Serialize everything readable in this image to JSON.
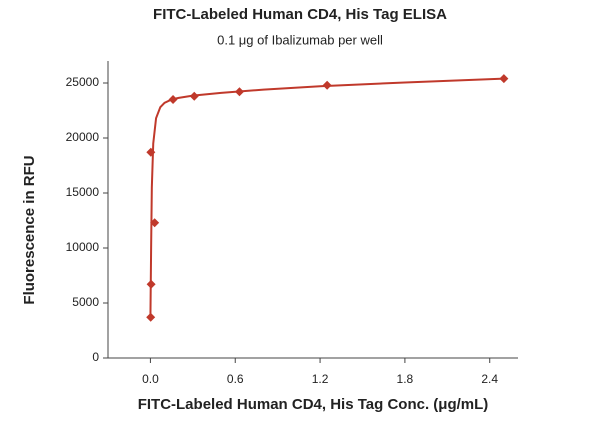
{
  "chart_data": {
    "type": "scatter",
    "title": "FITC-Labeled Human CD4, His Tag ELISA",
    "subtitle": "0.1 μg of Ibalizumab per well",
    "x_label": "FITC-Labeled Human CD4, His Tag Conc. (μg/mL)",
    "y_label": "Fluorescence in RFU",
    "color": "#c0392b",
    "x": [
      0.002,
      0.005,
      0.003,
      0.03,
      0.16,
      0.31,
      0.63,
      1.25,
      2.5
    ],
    "values": [
      3700,
      6700,
      18700,
      12300,
      23500,
      23800,
      24200,
      24800,
      25400
    ],
    "fit": {
      "x": [
        0,
        0.005,
        0.01,
        0.02,
        0.04,
        0.07,
        0.1,
        0.15,
        0.2,
        0.3,
        0.5,
        0.8,
        1.2,
        1.8,
        2.5
      ],
      "values": [
        3600,
        10000,
        15500,
        19500,
        21800,
        22800,
        23200,
        23500,
        23650,
        23850,
        24100,
        24400,
        24700,
        25050,
        25400
      ]
    },
    "xlim": [
      -0.3,
      2.6
    ],
    "ylim": [
      0,
      27000
    ],
    "xticks": [
      {
        "value": 0,
        "label": "0.0"
      },
      0.6,
      1.2,
      1.8,
      2.4
    ],
    "yticks": [
      0,
      5000,
      10000,
      15000,
      20000,
      25000
    ]
  }
}
